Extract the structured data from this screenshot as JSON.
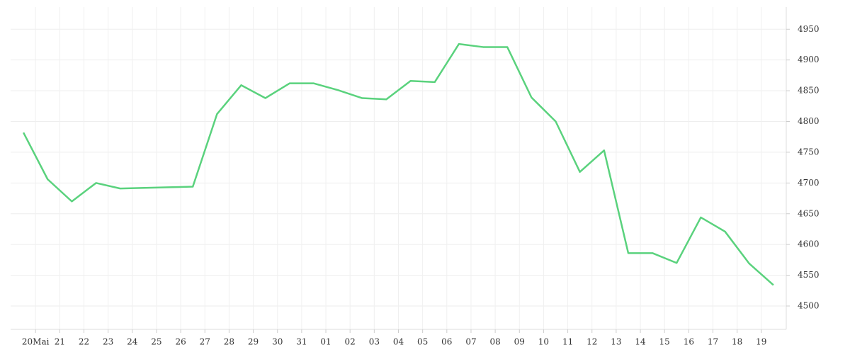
{
  "chart_data": {
    "type": "line",
    "x": [
      0,
      1,
      2,
      3,
      4,
      5,
      6,
      7,
      8,
      9,
      10,
      11,
      12,
      13,
      14,
      15,
      16,
      17,
      18,
      19,
      20,
      21,
      22,
      23,
      24,
      25,
      26,
      27,
      28,
      29,
      30,
      31
    ],
    "series": [
      {
        "color": "#5ad27d",
        "values": [
          4782,
          4706,
          4670,
          4700,
          4691,
          4692,
          4693,
          4694,
          4812,
          4859,
          4838,
          4862,
          4862,
          4851,
          4838,
          4836,
          4866,
          4864,
          4926,
          4921,
          4921,
          4839,
          4800,
          4718,
          4753,
          4586,
          4586,
          4570,
          4644,
          4621,
          4569,
          4534
        ]
      }
    ],
    "xlim": [
      -0.53,
      31.53
    ],
    "xticks": [
      {
        "value": 0.5,
        "label": "20Mai"
      },
      {
        "value": 1.5,
        "label": "21"
      },
      {
        "value": 2.5,
        "label": "22"
      },
      {
        "value": 3.5,
        "label": "23"
      },
      {
        "value": 4.5,
        "label": "24"
      },
      {
        "value": 5.5,
        "label": "25"
      },
      {
        "value": 6.5,
        "label": "26"
      },
      {
        "value": 7.5,
        "label": "27"
      },
      {
        "value": 8.5,
        "label": "28"
      },
      {
        "value": 9.5,
        "label": "29"
      },
      {
        "value": 10.5,
        "label": "30"
      },
      {
        "value": 11.5,
        "label": "31"
      },
      {
        "value": 12.5,
        "label": "01"
      },
      {
        "value": 13.5,
        "label": "02"
      },
      {
        "value": 14.5,
        "label": "03"
      },
      {
        "value": 15.5,
        "label": "04"
      },
      {
        "value": 16.5,
        "label": "05"
      },
      {
        "value": 17.5,
        "label": "06"
      },
      {
        "value": 18.5,
        "label": "07"
      },
      {
        "value": 19.5,
        "label": "08"
      },
      {
        "value": 20.5,
        "label": "09"
      },
      {
        "value": 21.5,
        "label": "10"
      },
      {
        "value": 22.5,
        "label": "11"
      },
      {
        "value": 23.5,
        "label": "12"
      },
      {
        "value": 24.5,
        "label": "13"
      },
      {
        "value": 25.5,
        "label": "14"
      },
      {
        "value": 26.5,
        "label": "15"
      },
      {
        "value": 27.5,
        "label": "16"
      },
      {
        "value": 28.5,
        "label": "17"
      },
      {
        "value": 29.5,
        "label": "18"
      },
      {
        "value": 30.5,
        "label": "19"
      }
    ],
    "ylim": [
      4462,
      4986
    ],
    "yticks": [
      4500,
      4550,
      4600,
      4650,
      4700,
      4750,
      4800,
      4850,
      4900,
      4950
    ],
    "grid": true
  }
}
